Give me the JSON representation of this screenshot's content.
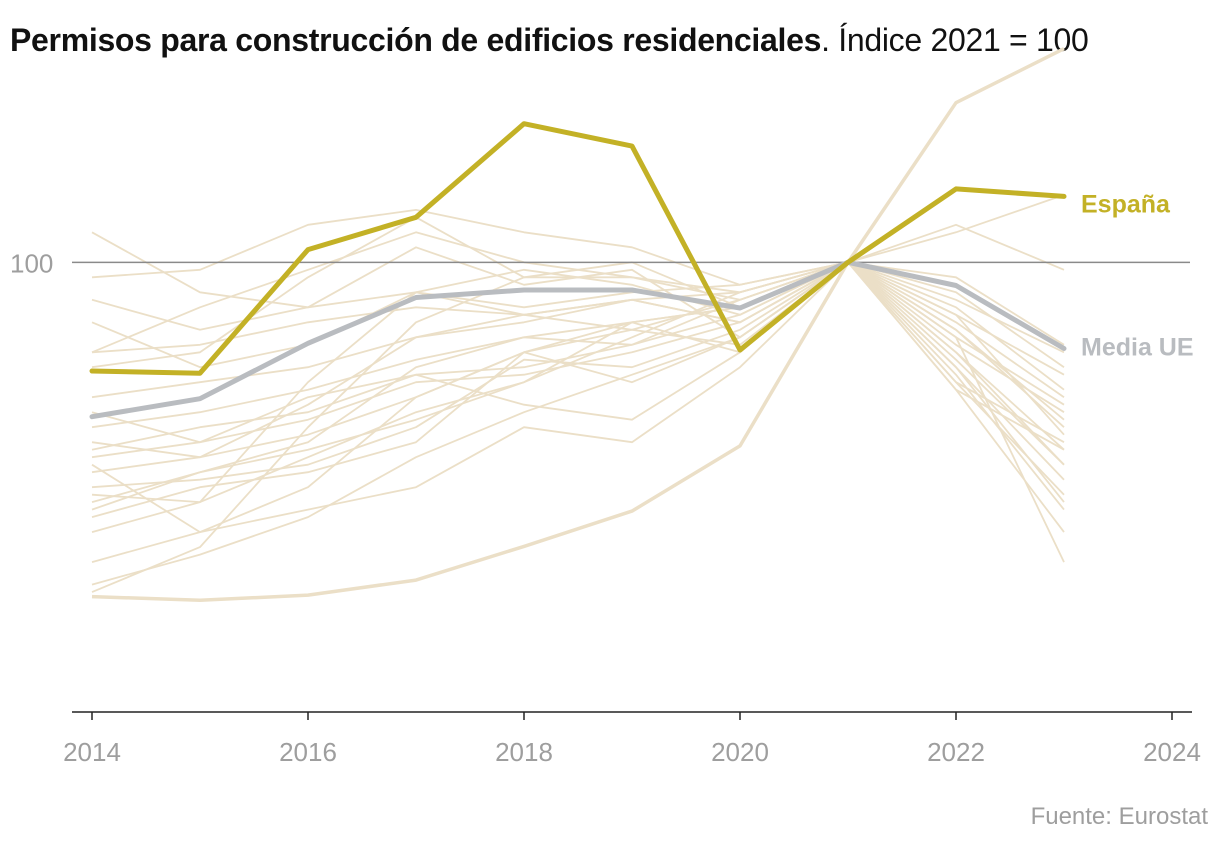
{
  "title": {
    "bold": "Permisos para construcción de edificios residenciales",
    "rest": ". Índice 2021 = 100"
  },
  "source": "Fuente: Eurostat",
  "colors": {
    "highlight": "#c3b126",
    "average": "#b9bcc0",
    "background_series": "#ebdfc7",
    "reference": "#8a8a8a",
    "axis_text": "#9e9e9e"
  },
  "chart_data": {
    "type": "line",
    "title": "Permisos para construcción de edificios residenciales. Índice 2021 = 100",
    "xlabel": "",
    "ylabel": "",
    "x": [
      2014,
      2015,
      2016,
      2017,
      2018,
      2019,
      2020,
      2021,
      2022,
      2023
    ],
    "xlim": [
      2014,
      2024
    ],
    "xticks": [
      2014,
      2016,
      2018,
      2020,
      2022,
      2024
    ],
    "ylim": [
      40,
      135
    ],
    "yticks": [
      100
    ],
    "reference_line": 100,
    "grid": false,
    "highlight_series": [
      {
        "name": "España",
        "values": [
          85.5,
          85.2,
          101.7,
          106.0,
          118.5,
          115.5,
          88.3,
          100.0,
          109.8,
          108.8
        ]
      },
      {
        "name": "Media UE",
        "values": [
          79.4,
          81.8,
          89.2,
          95.3,
          96.3,
          96.3,
          93.9,
          100.0,
          96.9,
          88.5
        ]
      }
    ],
    "other_series": [
      {
        "values": [
          55.4,
          54.9,
          55.6,
          57.6,
          62.1,
          66.8,
          75.5,
          100.0,
          121.3,
          128.5
        ]
      },
      {
        "values": [
          95.0,
          91.0,
          94.0,
          96.0,
          94.0,
          96.0,
          97.0,
          100.0,
          98.0,
          89.0
        ]
      },
      {
        "values": [
          88.0,
          89.0,
          92.0,
          94.0,
          93.0,
          91.0,
          95.0,
          100.0,
          93.0,
          85.0
        ]
      },
      {
        "values": [
          92.0,
          86.0,
          89.0,
          96.0,
          93.0,
          95.0,
          92.0,
          100.0,
          95.0,
          88.0
        ]
      },
      {
        "values": [
          82.0,
          84.0,
          86.0,
          90.0,
          92.0,
          95.0,
          96.0,
          100.0,
          92.0,
          82.0
        ]
      },
      {
        "values": [
          78.0,
          80.0,
          83.0,
          87.0,
          90.0,
          92.0,
          94.0,
          100.0,
          96.0,
          86.0
        ]
      },
      {
        "values": [
          75.0,
          78.0,
          80.0,
          85.0,
          86.0,
          89.0,
          93.0,
          100.0,
          104.0,
          109.0
        ]
      },
      {
        "values": [
          74.0,
          76.0,
          79.0,
          84.0,
          85.0,
          88.0,
          92.0,
          100.0,
          90.0,
          81.0
        ]
      },
      {
        "values": [
          72.0,
          74.0,
          77.0,
          82.0,
          88.0,
          84.0,
          90.0,
          100.0,
          91.0,
          79.0
        ]
      },
      {
        "values": [
          70.0,
          71.0,
          73.0,
          78.0,
          87.0,
          86.0,
          91.0,
          100.0,
          93.0,
          77.0
        ]
      },
      {
        "values": [
          68.0,
          72.0,
          76.0,
          86.0,
          90.0,
          89.0,
          95.0,
          100.0,
          88.0,
          75.0
        ]
      },
      {
        "values": [
          66.0,
          70.0,
          72.0,
          76.0,
          88.0,
          91.0,
          89.0,
          100.0,
          87.0,
          73.0
        ]
      },
      {
        "values": [
          64.0,
          68.0,
          74.0,
          80.0,
          84.0,
          90.0,
          96.0,
          100.0,
          86.0,
          71.0
        ]
      },
      {
        "values": [
          60.0,
          64.0,
          70.0,
          82.0,
          88.0,
          92.0,
          94.0,
          100.0,
          89.0,
          80.0
        ]
      },
      {
        "values": [
          57.0,
          61.0,
          66.0,
          74.0,
          80.0,
          85.0,
          90.0,
          100.0,
          94.0,
          83.0
        ]
      },
      {
        "values": [
          56.0,
          62.0,
          78.0,
          92.0,
          98.0,
          98.0,
          95.0,
          100.0,
          88.0,
          73.0
        ]
      },
      {
        "values": [
          69.0,
          68.0,
          84.0,
          96.0,
          99.0,
          97.0,
          93.0,
          100.0,
          91.0,
          78.0
        ]
      },
      {
        "values": [
          104.0,
          96.0,
          94.0,
          102.0,
          97.0,
          99.0,
          90.0,
          100.0,
          84.0,
          76.0
        ]
      },
      {
        "values": [
          98.0,
          99.0,
          105.0,
          107.0,
          104.0,
          102.0,
          97.0,
          100.0,
          105.0,
          99.0
        ]
      },
      {
        "values": [
          86.0,
          88.0,
          98.0,
          106.0,
          98.0,
          100.0,
          94.0,
          100.0,
          83.0,
          75.0
        ]
      },
      {
        "values": [
          88.0,
          94.0,
          99.0,
          104.0,
          100.0,
          98.0,
          96.0,
          100.0,
          84.0,
          69.0
        ]
      },
      {
        "values": [
          73.0,
          64.0,
          67.0,
          70.0,
          78.0,
          76.0,
          86.0,
          100.0,
          86.0,
          68.0
        ]
      },
      {
        "values": [
          76.0,
          74.0,
          81.0,
          90.0,
          93.0,
          95.0,
          92.0,
          100.0,
          83.0,
          64.0
        ]
      },
      {
        "values": [
          80.0,
          76.0,
          82.0,
          85.0,
          81.0,
          79.0,
          88.0,
          100.0,
          90.0,
          60.0
        ]
      },
      {
        "values": [
          67.0,
          72.0,
          75.0,
          79.0,
          84.0,
          92.0,
          88.0,
          100.0,
          85.0,
          67.0
        ]
      }
    ]
  }
}
